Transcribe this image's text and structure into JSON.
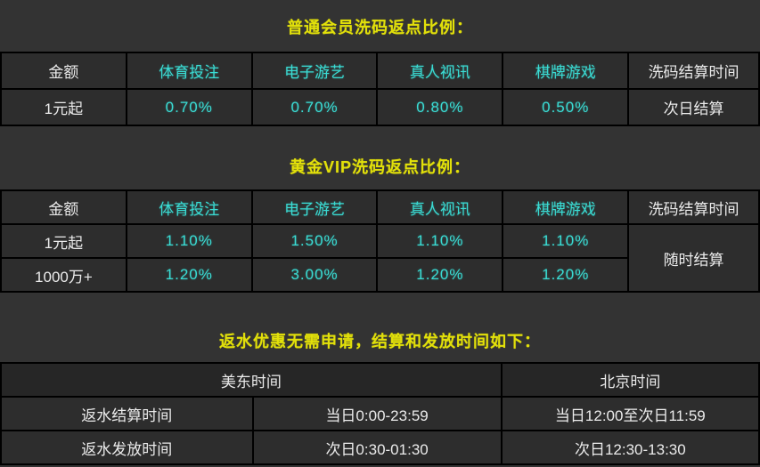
{
  "colors": {
    "page_bg": "#333333",
    "cell_bg": "#2d2d2d",
    "header3_bg": "#262626",
    "border": "#000000",
    "title_yellow": "#e2e00a",
    "accent_cyan": "#3adcd4",
    "text_white": "#ebebeb"
  },
  "section_normal": {
    "title": "普通会员洗码返点比例：",
    "headers": [
      "金额",
      "体育投注",
      "电子游艺",
      "真人视讯",
      "棋牌游戏",
      "洗码结算时间"
    ],
    "row1": [
      "1元起",
      "0.70%",
      "0.70%",
      "0.80%",
      "0.50%",
      "次日结算"
    ]
  },
  "section_vip": {
    "title": "黄金VIP洗码返点比例：",
    "headers": [
      "金额",
      "体育投注",
      "电子游艺",
      "真人视讯",
      "棋牌游戏",
      "洗码结算时间"
    ],
    "row1": [
      "1元起",
      "1.10%",
      "1.50%",
      "1.10%",
      "1.10%"
    ],
    "row2": [
      "1000万+",
      "1.20%",
      "3.00%",
      "1.20%",
      "1.20%"
    ],
    "settle_time": "随时结算"
  },
  "section_rebate": {
    "title": "返水优惠无需申请，结算和发放时间如下：",
    "headers": [
      "美东时间",
      "北京时间"
    ],
    "rows": [
      [
        "返水结算时间",
        "当日0:00-23:59",
        "当日12:00至次日11:59"
      ],
      [
        "返水发放时间",
        "次日0:30-01:30",
        "次日12:30-13:30"
      ]
    ]
  }
}
